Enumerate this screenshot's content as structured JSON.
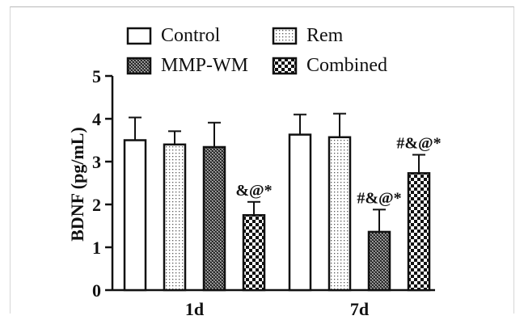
{
  "chart_data": {
    "type": "bar",
    "title": "",
    "xlabel": "",
    "ylabel": "BDNF (pg/mL)",
    "ylim": [
      0,
      5
    ],
    "yticks": [
      "0",
      "1",
      "2",
      "3",
      "4",
      "5"
    ],
    "categories": [
      "1d",
      "7d"
    ],
    "legend_position": "top",
    "series": [
      {
        "name": "Control",
        "pattern": "white",
        "values": [
          3.5,
          3.63
        ],
        "errors": [
          0.53,
          0.47
        ],
        "annotations": [
          "",
          ""
        ]
      },
      {
        "name": "Rem",
        "pattern": "dots",
        "values": [
          3.4,
          3.57
        ],
        "errors": [
          0.31,
          0.55
        ],
        "annotations": [
          "",
          ""
        ]
      },
      {
        "name": "MMP-WM",
        "pattern": "dense-check",
        "values": [
          3.34,
          1.36
        ],
        "errors": [
          0.57,
          0.52
        ],
        "annotations": [
          "",
          "#&@*"
        ]
      },
      {
        "name": "Combined",
        "pattern": "checker",
        "values": [
          1.75,
          2.73
        ],
        "errors": [
          0.31,
          0.43
        ],
        "annotations": [
          "&@*",
          "#&@*"
        ]
      }
    ]
  }
}
